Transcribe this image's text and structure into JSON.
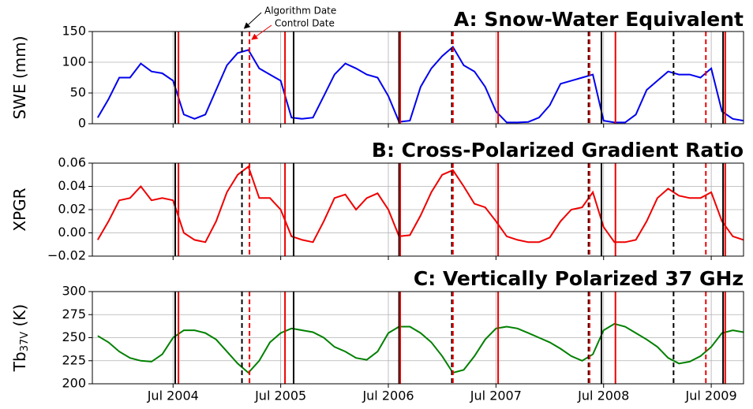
{
  "chart_data": [
    {
      "type": "line",
      "title": "A: Snow-Water Equivalent",
      "ylabel": {
        "main": "SWE (mm)"
      },
      "xlim": [
        2003.75,
        2009.8
      ],
      "xticks": [
        2004.5,
        2005.5,
        2006.5,
        2007.5,
        2008.5,
        2009.5
      ],
      "ylim": [
        0,
        150
      ],
      "yticks": [
        0,
        50,
        100,
        150
      ],
      "grid": true,
      "x": [
        2003.8,
        2003.9,
        2004.0,
        2004.1,
        2004.2,
        2004.3,
        2004.4,
        2004.5,
        2004.6,
        2004.7,
        2004.8,
        2004.9,
        2005.0,
        2005.1,
        2005.2,
        2005.3,
        2005.4,
        2005.5,
        2005.6,
        2005.7,
        2005.8,
        2005.9,
        2006.0,
        2006.1,
        2006.2,
        2006.3,
        2006.4,
        2006.5,
        2006.6,
        2006.7,
        2006.8,
        2006.9,
        2007.0,
        2007.1,
        2007.2,
        2007.3,
        2007.4,
        2007.5,
        2007.6,
        2007.7,
        2007.8,
        2007.9,
        2008.0,
        2008.1,
        2008.2,
        2008.3,
        2008.4,
        2008.5,
        2008.6,
        2008.7,
        2008.8,
        2008.9,
        2009.0,
        2009.1,
        2009.2,
        2009.3,
        2009.4,
        2009.5,
        2009.6,
        2009.7,
        2009.8
      ],
      "series": [
        {
          "color": "#0000ee",
          "values": [
            10,
            40,
            75,
            75,
            98,
            85,
            82,
            70,
            15,
            8,
            15,
            55,
            95,
            115,
            120,
            90,
            80,
            70,
            10,
            8,
            10,
            45,
            80,
            98,
            90,
            80,
            75,
            45,
            3,
            5,
            60,
            90,
            110,
            125,
            95,
            85,
            60,
            20,
            2,
            2,
            3,
            10,
            30,
            65,
            70,
            75,
            80,
            5,
            2,
            2,
            15,
            55,
            70,
            85,
            80,
            80,
            75,
            90,
            20,
            8,
            5
          ]
        }
      ],
      "vlines": [
        {
          "x": 2004.52,
          "color": "#000000",
          "style": "solid"
        },
        {
          "x": 2004.55,
          "color": "#ee0000",
          "style": "solid"
        },
        {
          "x": 2005.14,
          "color": "#000000",
          "style": "dashed"
        },
        {
          "x": 2005.21,
          "color": "#ee0000",
          "style": "dashed"
        },
        {
          "x": 2005.54,
          "color": "#ee0000",
          "style": "solid"
        },
        {
          "x": 2005.62,
          "color": "#000000",
          "style": "solid"
        },
        {
          "x": 2006.6,
          "color": "#000000",
          "style": "solid"
        },
        {
          "x": 2006.61,
          "color": "#ee0000",
          "style": "solid"
        },
        {
          "x": 2007.09,
          "color": "#000000",
          "style": "dashed"
        },
        {
          "x": 2007.1,
          "color": "#ee0000",
          "style": "dashed"
        },
        {
          "x": 2007.52,
          "color": "#ee0000",
          "style": "solid"
        },
        {
          "x": 2008.36,
          "color": "#000000",
          "style": "dashed"
        },
        {
          "x": 2008.37,
          "color": "#ee0000",
          "style": "dashed"
        },
        {
          "x": 2008.48,
          "color": "#000000",
          "style": "solid"
        },
        {
          "x": 2008.61,
          "color": "#ee0000",
          "style": "solid"
        },
        {
          "x": 2009.15,
          "color": "#000000",
          "style": "dashed"
        },
        {
          "x": 2009.45,
          "color": "#ee0000",
          "style": "dashed"
        },
        {
          "x": 2009.61,
          "color": "#000000",
          "style": "solid"
        },
        {
          "x": 2009.63,
          "color": "#ee0000",
          "style": "solid"
        }
      ],
      "annotations": [
        {
          "text": "Algorithm Date",
          "color": "#000000"
        },
        {
          "text": "Control Date",
          "color": "#ee0000"
        }
      ]
    },
    {
      "type": "line",
      "title": "B: Cross-Polarized Gradient Ratio",
      "ylabel": {
        "main": "XPGR"
      },
      "xlim": [
        2003.75,
        2009.8
      ],
      "xticks": [
        2004.5,
        2005.5,
        2006.5,
        2007.5,
        2008.5,
        2009.5
      ],
      "ylim": [
        -0.02,
        0.06
      ],
      "yticks": [
        {
          "value": -0.02,
          "label": "−0.02"
        },
        {
          "value": 0,
          "label": "0.00"
        },
        {
          "value": 0.02,
          "label": "0.02"
        },
        {
          "value": 0.04,
          "label": "0.04"
        },
        {
          "value": 0.06,
          "label": "0.06"
        }
      ],
      "grid": true,
      "x": [
        2003.8,
        2003.9,
        2004.0,
        2004.1,
        2004.2,
        2004.3,
        2004.4,
        2004.5,
        2004.6,
        2004.7,
        2004.8,
        2004.9,
        2005.0,
        2005.1,
        2005.2,
        2005.3,
        2005.4,
        2005.5,
        2005.6,
        2005.7,
        2005.8,
        2005.9,
        2006.0,
        2006.1,
        2006.2,
        2006.3,
        2006.4,
        2006.5,
        2006.6,
        2006.7,
        2006.8,
        2006.9,
        2007.0,
        2007.1,
        2007.2,
        2007.3,
        2007.4,
        2007.5,
        2007.6,
        2007.7,
        2007.8,
        2007.9,
        2008.0,
        2008.1,
        2008.2,
        2008.3,
        2008.4,
        2008.5,
        2008.6,
        2008.7,
        2008.8,
        2008.9,
        2009.0,
        2009.1,
        2009.2,
        2009.3,
        2009.4,
        2009.5,
        2009.6,
        2009.7,
        2009.8
      ],
      "series": [
        {
          "color": "#ee0000",
          "values": [
            -0.006,
            0.01,
            0.028,
            0.03,
            0.04,
            0.028,
            0.03,
            0.028,
            0.0,
            -0.006,
            -0.008,
            0.01,
            0.035,
            0.05,
            0.057,
            0.03,
            0.03,
            0.02,
            -0.003,
            -0.006,
            -0.008,
            0.01,
            0.03,
            0.033,
            0.02,
            0.03,
            0.034,
            0.02,
            -0.003,
            -0.002,
            0.015,
            0.035,
            0.05,
            0.054,
            0.04,
            0.025,
            0.022,
            0.01,
            -0.003,
            -0.006,
            -0.008,
            -0.008,
            -0.004,
            0.01,
            0.02,
            0.022,
            0.035,
            0.005,
            -0.008,
            -0.008,
            -0.006,
            0.01,
            0.03,
            0.038,
            0.032,
            0.03,
            0.03,
            0.035,
            0.01,
            -0.003,
            -0.006
          ]
        }
      ],
      "vlines": [
        {
          "x": 2004.52,
          "color": "#000000",
          "style": "solid"
        },
        {
          "x": 2004.55,
          "color": "#ee0000",
          "style": "solid"
        },
        {
          "x": 2005.14,
          "color": "#000000",
          "style": "dashed"
        },
        {
          "x": 2005.21,
          "color": "#ee0000",
          "style": "dashed"
        },
        {
          "x": 2005.54,
          "color": "#ee0000",
          "style": "solid"
        },
        {
          "x": 2005.62,
          "color": "#000000",
          "style": "solid"
        },
        {
          "x": 2006.6,
          "color": "#000000",
          "style": "solid"
        },
        {
          "x": 2006.61,
          "color": "#ee0000",
          "style": "solid"
        },
        {
          "x": 2007.09,
          "color": "#000000",
          "style": "dashed"
        },
        {
          "x": 2007.1,
          "color": "#ee0000",
          "style": "dashed"
        },
        {
          "x": 2007.52,
          "color": "#ee0000",
          "style": "solid"
        },
        {
          "x": 2008.36,
          "color": "#000000",
          "style": "dashed"
        },
        {
          "x": 2008.37,
          "color": "#ee0000",
          "style": "dashed"
        },
        {
          "x": 2008.48,
          "color": "#000000",
          "style": "solid"
        },
        {
          "x": 2008.61,
          "color": "#ee0000",
          "style": "solid"
        },
        {
          "x": 2009.15,
          "color": "#000000",
          "style": "dashed"
        },
        {
          "x": 2009.45,
          "color": "#ee0000",
          "style": "dashed"
        },
        {
          "x": 2009.61,
          "color": "#000000",
          "style": "solid"
        },
        {
          "x": 2009.63,
          "color": "#ee0000",
          "style": "solid"
        }
      ]
    },
    {
      "type": "line",
      "title": "C: Vertically Polarized 37 GHz",
      "ylabel": {
        "main": "Tb",
        "sub": "37V",
        "unit": " (K)"
      },
      "xlim": [
        2003.75,
        2009.8
      ],
      "xticks": [
        {
          "value": 2004.5,
          "label": "Jul 2004"
        },
        {
          "value": 2005.5,
          "label": "Jul 2005"
        },
        {
          "value": 2006.5,
          "label": "Jul 2006"
        },
        {
          "value": 2007.5,
          "label": "Jul 2007"
        },
        {
          "value": 2008.5,
          "label": "Jul 2008"
        },
        {
          "value": 2009.5,
          "label": "Jul 2009"
        }
      ],
      "ylim": [
        200,
        300
      ],
      "yticks": [
        200,
        225,
        250,
        275,
        300
      ],
      "grid": true,
      "x": [
        2003.8,
        2003.9,
        2004.0,
        2004.1,
        2004.2,
        2004.3,
        2004.4,
        2004.5,
        2004.6,
        2004.7,
        2004.8,
        2004.9,
        2005.0,
        2005.1,
        2005.2,
        2005.3,
        2005.4,
        2005.5,
        2005.6,
        2005.7,
        2005.8,
        2005.9,
        2006.0,
        2006.1,
        2006.2,
        2006.3,
        2006.4,
        2006.5,
        2006.6,
        2006.7,
        2006.8,
        2006.9,
        2007.0,
        2007.1,
        2007.2,
        2007.3,
        2007.4,
        2007.5,
        2007.6,
        2007.7,
        2007.8,
        2007.9,
        2008.0,
        2008.1,
        2008.2,
        2008.3,
        2008.4,
        2008.5,
        2008.6,
        2008.7,
        2008.8,
        2008.9,
        2009.0,
        2009.1,
        2009.2,
        2009.3,
        2009.4,
        2009.5,
        2009.6,
        2009.7,
        2009.8
      ],
      "series": [
        {
          "color": "#008000",
          "values": [
            252,
            245,
            235,
            228,
            225,
            224,
            232,
            250,
            258,
            258,
            255,
            248,
            235,
            222,
            212,
            225,
            245,
            255,
            260,
            258,
            256,
            250,
            240,
            235,
            228,
            226,
            235,
            255,
            262,
            262,
            255,
            245,
            230,
            212,
            215,
            230,
            248,
            260,
            262,
            260,
            255,
            250,
            245,
            238,
            230,
            225,
            232,
            258,
            265,
            262,
            255,
            248,
            240,
            228,
            222,
            224,
            230,
            240,
            255,
            258,
            256
          ]
        }
      ],
      "vlines": [
        {
          "x": 2004.52,
          "color": "#000000",
          "style": "solid"
        },
        {
          "x": 2004.55,
          "color": "#ee0000",
          "style": "solid"
        },
        {
          "x": 2005.14,
          "color": "#000000",
          "style": "dashed"
        },
        {
          "x": 2005.21,
          "color": "#ee0000",
          "style": "dashed"
        },
        {
          "x": 2005.54,
          "color": "#ee0000",
          "style": "solid"
        },
        {
          "x": 2005.62,
          "color": "#000000",
          "style": "solid"
        },
        {
          "x": 2006.6,
          "color": "#000000",
          "style": "solid"
        },
        {
          "x": 2006.61,
          "color": "#ee0000",
          "style": "solid"
        },
        {
          "x": 2007.09,
          "color": "#000000",
          "style": "dashed"
        },
        {
          "x": 2007.1,
          "color": "#ee0000",
          "style": "dashed"
        },
        {
          "x": 2007.52,
          "color": "#ee0000",
          "style": "solid"
        },
        {
          "x": 2008.36,
          "color": "#000000",
          "style": "dashed"
        },
        {
          "x": 2008.37,
          "color": "#ee0000",
          "style": "dashed"
        },
        {
          "x": 2008.48,
          "color": "#000000",
          "style": "solid"
        },
        {
          "x": 2008.61,
          "color": "#ee0000",
          "style": "solid"
        },
        {
          "x": 2009.15,
          "color": "#000000",
          "style": "dashed"
        },
        {
          "x": 2009.45,
          "color": "#ee0000",
          "style": "dashed"
        },
        {
          "x": 2009.61,
          "color": "#000000",
          "style": "solid"
        },
        {
          "x": 2009.63,
          "color": "#ee0000",
          "style": "solid"
        }
      ]
    }
  ]
}
